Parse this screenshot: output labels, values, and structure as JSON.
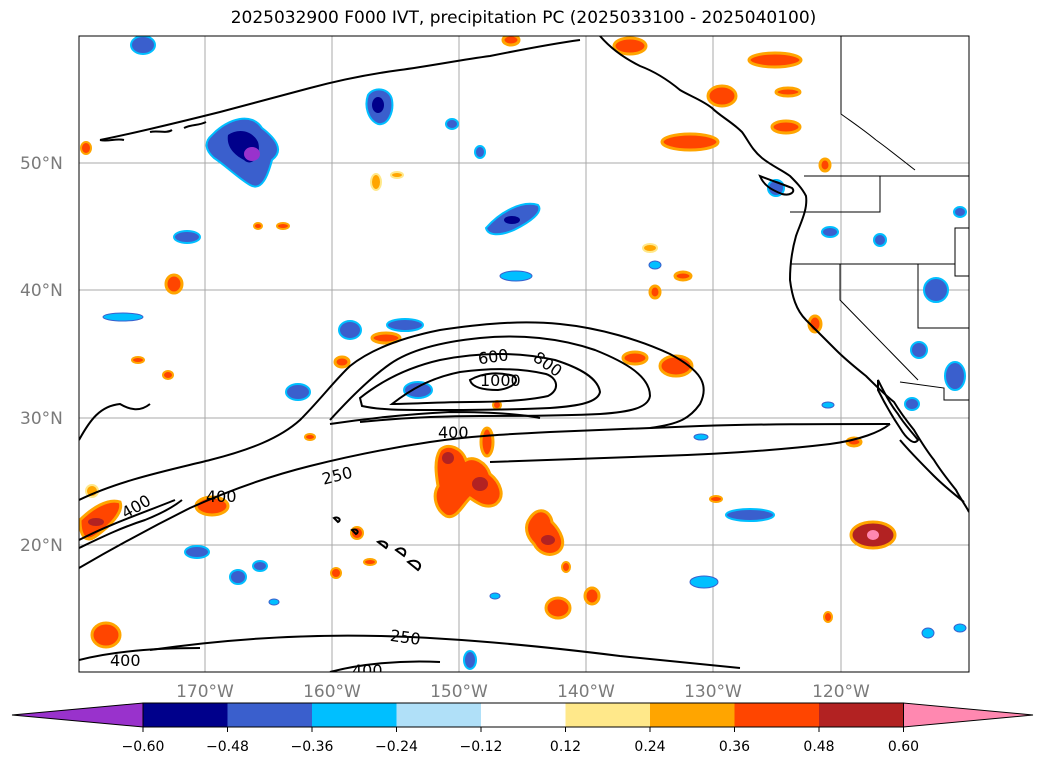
{
  "title": "2025032900 F000 IVT, precipitation PC (2025033100 - 2025040100)",
  "lat_ticks": [
    "50°N",
    "40°N",
    "30°N",
    "20°N"
  ],
  "lon_ticks": [
    "170°W",
    "160°W",
    "150°W",
    "140°W",
    "130°W",
    "120°W"
  ],
  "ivt_contour_labels": [
    "250",
    "400",
    "600",
    "800",
    "1000",
    "400",
    "250",
    "400",
    "400",
    "250",
    "400",
    "400"
  ],
  "colorbar": {
    "ticks": [
      "−0.60",
      "−0.48",
      "−0.36",
      "−0.24",
      "−0.12",
      "0.12",
      "0.24",
      "0.36",
      "0.48",
      "0.60"
    ],
    "colors": [
      "#9932cc",
      "#00008b",
      "#3a5fcd",
      "#00bfff",
      "#b0e0f8",
      "#ffffff",
      "#ffe88a",
      "#ffa500",
      "#ff4500",
      "#b22222",
      "#ff88b0"
    ]
  }
}
